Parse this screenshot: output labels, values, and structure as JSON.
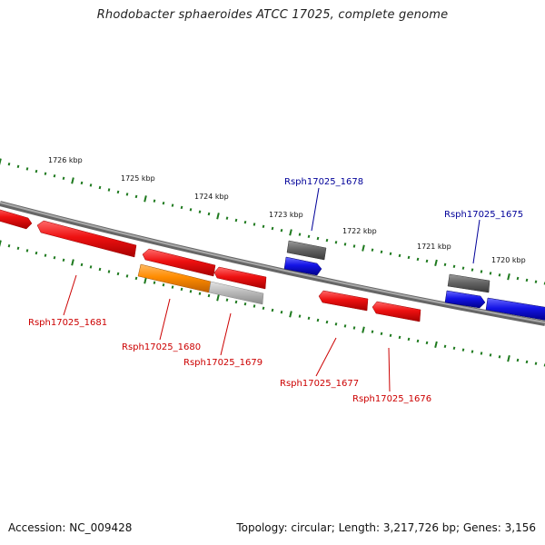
{
  "title": "Rhodobacter sphaeroides ATCC 17025, complete genome",
  "accession": "Accession: NC_009428",
  "summary": "Topology: circular; Length: 3,217,726 bp; Genes: 3,156",
  "ruler_labels": [
    "1726 kbp",
    "1725 kbp",
    "1724 kbp",
    "1723 kbp",
    "1722 kbp",
    "1721 kbp",
    "1720 kbp"
  ],
  "colors": {
    "backbone": "#7a7a7a",
    "tick": "#1f7a1f",
    "gene_red": "#ee1111",
    "gene_blue": "#1414e6",
    "gene_grey": "#666666",
    "gene_orange": "#ff8c00",
    "gene_lightgrey": "#bbbbbb",
    "label_red": "#cc0000",
    "label_blue": "#000099"
  },
  "genes": [
    {
      "label": "Rsph17025_1681",
      "strand": "minus",
      "color": "red"
    },
    {
      "label": "Rsph17025_1680",
      "strand": "minus",
      "color": "red"
    },
    {
      "label": "Rsph17025_1679",
      "strand": "minus",
      "color": "red"
    },
    {
      "label": "Rsph17025_1678",
      "strand": "plus",
      "color": "blue"
    },
    {
      "label": "Rsph17025_1677",
      "strand": "minus",
      "color": "red"
    },
    {
      "label": "Rsph17025_1676",
      "strand": "minus",
      "color": "red"
    },
    {
      "label": "Rsph17025_1675",
      "strand": "plus",
      "color": "blue"
    }
  ]
}
